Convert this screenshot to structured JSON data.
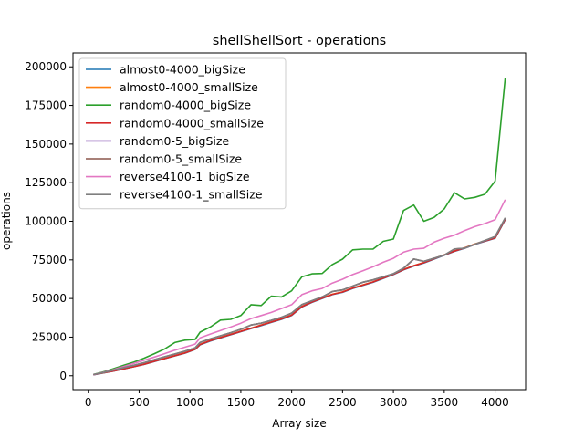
{
  "chart_data": {
    "type": "line",
    "title": "shellShellSort - operations",
    "xlabel": "Array size",
    "ylabel": "operations",
    "xlim": [
      -150,
      4300
    ],
    "ylim": [
      -9000,
      209000
    ],
    "xticks": [
      0,
      500,
      1000,
      1500,
      2000,
      2500,
      3000,
      3500,
      4000
    ],
    "yticks": [
      0,
      25000,
      50000,
      75000,
      100000,
      125000,
      150000,
      175000,
      200000
    ],
    "grid": false,
    "legend": "top-left",
    "x": [
      50,
      150,
      250,
      350,
      450,
      550,
      650,
      750,
      850,
      950,
      1050,
      1100,
      1200,
      1300,
      1400,
      1500,
      1600,
      1700,
      1800,
      1900,
      2000,
      2100,
      2200,
      2300,
      2400,
      2500,
      2600,
      2700,
      2800,
      2900,
      3000,
      3100,
      3200,
      3300,
      3400,
      3500,
      3600,
      3700,
      3800,
      3900,
      4000,
      4100
    ],
    "series": [
      {
        "name": "almost0-4000_bigSize",
        "color": "#1f77b4",
        "values": [
          600,
          1800,
          3000,
          4400,
          5800,
          7300,
          9200,
          11000,
          12800,
          14600,
          17000,
          20000,
          22500,
          24500,
          26500,
          28500,
          30500,
          32500,
          34500,
          36500,
          39000,
          44500,
          47500,
          50000,
          52500,
          54000,
          56500,
          58500,
          60500,
          63000,
          65500,
          68500,
          71000,
          73000,
          75500,
          78000,
          80500,
          82500,
          85000,
          87000,
          89000,
          101000
        ]
      },
      {
        "name": "almost0-4000_smallSize",
        "color": "#ff7f0e",
        "values": [
          700,
          1900,
          3100,
          4500,
          6000,
          7500,
          9400,
          11200,
          13000,
          14800,
          17200,
          20300,
          22800,
          24800,
          26800,
          28800,
          30800,
          32800,
          34800,
          36800,
          39300,
          44800,
          47800,
          50300,
          52800,
          54300,
          56800,
          58800,
          60800,
          63300,
          65800,
          68800,
          71300,
          73300,
          75800,
          78300,
          80800,
          82800,
          85300,
          87300,
          89300,
          101500
        ]
      },
      {
        "name": "random0-4000_bigSize",
        "color": "#2ca02c",
        "values": [
          800,
          2500,
          4600,
          6800,
          8900,
          11400,
          14300,
          17300,
          21500,
          23000,
          23500,
          28200,
          31500,
          36000,
          36500,
          39000,
          46000,
          45500,
          51500,
          51000,
          55000,
          64000,
          66000,
          66200,
          72000,
          75500,
          81500,
          82000,
          82000,
          87000,
          88500,
          107000,
          110500,
          100000,
          102500,
          108000,
          118500,
          114500,
          115500,
          117500,
          126000,
          193000
        ]
      },
      {
        "name": "random0-4000_smallSize",
        "color": "#d62728",
        "values": [
          650,
          1850,
          3050,
          4450,
          5900,
          7400,
          9300,
          11100,
          12900,
          14700,
          17100,
          20200,
          22700,
          24700,
          26700,
          28700,
          30700,
          32700,
          34700,
          36700,
          39200,
          44700,
          47700,
          50200,
          52700,
          54200,
          56700,
          58700,
          60700,
          63200,
          65700,
          68700,
          71200,
          73200,
          75700,
          78200,
          80700,
          82700,
          85200,
          87200,
          89200,
          101300
        ]
      },
      {
        "name": "random0-5_bigSize",
        "color": "#9467bd",
        "values": [
          700,
          2000,
          3600,
          5200,
          6700,
          8400,
          10300,
          12200,
          14000,
          15800,
          18000,
          21500,
          23800,
          25800,
          27800,
          30000,
          32800,
          34000,
          35800,
          37800,
          40500,
          46000,
          48500,
          51000,
          54500,
          55500,
          58000,
          60500,
          62000,
          64000,
          66000,
          69500,
          75500,
          74000,
          76000,
          78000,
          82000,
          82500,
          85000,
          87500,
          90000,
          102000
        ]
      },
      {
        "name": "random0-5_smallSize",
        "color": "#8c564b",
        "values": [
          720,
          2050,
          3650,
          5250,
          6750,
          8450,
          10350,
          12250,
          14050,
          15850,
          18050,
          21550,
          23850,
          25850,
          27850,
          30050,
          32850,
          34050,
          35850,
          37850,
          40550,
          46050,
          48550,
          51050,
          54550,
          55550,
          58050,
          60550,
          62050,
          64050,
          66050,
          69550,
          75550,
          74050,
          76050,
          78050,
          82050,
          82550,
          85050,
          87550,
          90050,
          102100
        ]
      },
      {
        "name": "reverse4100-1_bigSize",
        "color": "#e377c2",
        "values": [
          700,
          2300,
          4000,
          6000,
          8000,
          10000,
          12100,
          14300,
          16500,
          18500,
          20500,
          24500,
          27000,
          29200,
          31500,
          34000,
          37000,
          39000,
          41000,
          43500,
          46000,
          52500,
          55000,
          56500,
          60000,
          62500,
          65500,
          68000,
          70500,
          73500,
          76000,
          80000,
          82000,
          82500,
          86500,
          89000,
          91000,
          94000,
          96500,
          98500,
          101000,
          114000
        ]
      },
      {
        "name": "reverse4100-1_smallSize",
        "color": "#7f7f7f",
        "values": [
          720,
          2080,
          3680,
          5280,
          6780,
          8480,
          10380,
          12280,
          14080,
          15880,
          18080,
          21580,
          23880,
          25880,
          27880,
          30080,
          32880,
          34080,
          35880,
          37880,
          40580,
          46080,
          48580,
          51080,
          54580,
          55580,
          58080,
          60580,
          62080,
          64080,
          66080,
          69580,
          75580,
          74080,
          76080,
          78080,
          82080,
          82580,
          85080,
          87580,
          90080,
          102200
        ]
      }
    ]
  }
}
